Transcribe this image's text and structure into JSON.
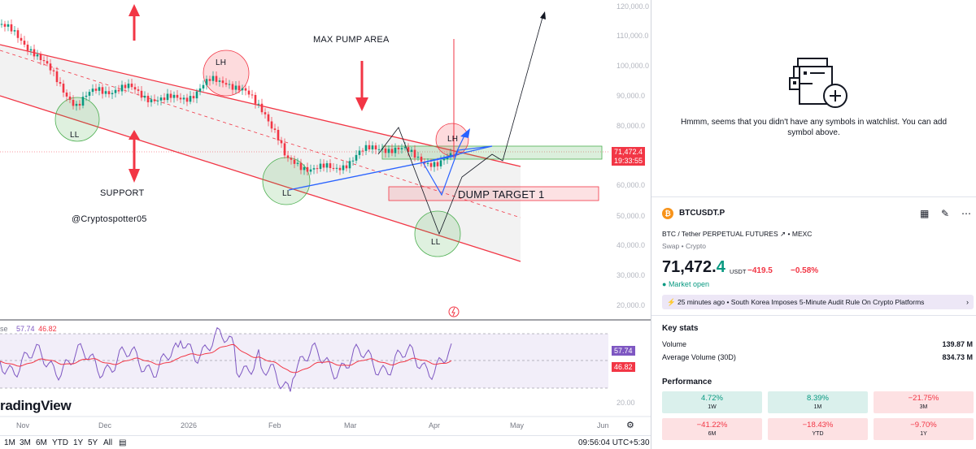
{
  "chart": {
    "price_axis": [
      "120,000.0",
      "110,000.0",
      "100,000.0",
      "90,000.0",
      "80,000.0",
      "70,000.0",
      "60,000.0",
      "50,000.0",
      "40,000.0",
      "30,000.0",
      "20,000.0"
    ],
    "time_axis": [
      "Nov",
      "Dec",
      "2026",
      "Feb",
      "Mar",
      "Apr",
      "May",
      "Jun"
    ],
    "current_price_tag": "71,472.4",
    "countdown_tag": "19:33:55",
    "annotations": {
      "max_pump": "MAX PUMP AREA",
      "support": "SUPPORT",
      "dump_target": "DUMP TARGET 1",
      "handle": "@Cryptospotter05",
      "lh1": "LH",
      "lh2": "LH",
      "ll1": "LL",
      "ll2": "LL",
      "ll3": "LL"
    },
    "rsi": {
      "legend_prefix": "se",
      "value1": "57.74",
      "value2": "46.82",
      "axis_label": "20.00"
    },
    "logo_text": "radingView",
    "range_buttons": [
      "1M",
      "3M",
      "6M",
      "YTD",
      "1Y",
      "5Y",
      "All"
    ],
    "clock": "09:56:04 UTC+5:30"
  },
  "watchlist": {
    "empty_message": "Hmmm, seems that you didn't have any symbols in watchlist. You can add symbol above."
  },
  "symbol": {
    "ticker": "BTCUSDT.P",
    "description": "BTC / Tether PERPETUAL FUTURES",
    "exchange": "MEXC",
    "type": "Swap • Crypto",
    "price_main": "71,472.",
    "price_last_digit": "4",
    "currency": "USDT",
    "change": "−419.5",
    "change_pct": "−0.58%",
    "market_status": "Market open",
    "news_time": "25 minutes ago",
    "news_headline": "South Korea Imposes 5-Minute Audit Rule On Crypto Platforms"
  },
  "key_stats": {
    "title": "Key stats",
    "rows": [
      {
        "label": "Volume",
        "value": "139.87 M"
      },
      {
        "label": "Average Volume (30D)",
        "value": "834.73 M"
      }
    ]
  },
  "performance": {
    "title": "Performance",
    "cells": [
      {
        "value": "4.72%",
        "label": "1W",
        "positive": true
      },
      {
        "value": "8.39%",
        "label": "1M",
        "positive": true
      },
      {
        "value": "−21.75%",
        "label": "3M",
        "positive": false
      },
      {
        "value": "−41.22%",
        "label": "6M",
        "positive": false
      },
      {
        "value": "−18.43%",
        "label": "YTD",
        "positive": false
      },
      {
        "value": "−9.70%",
        "label": "1Y",
        "positive": false
      }
    ]
  },
  "colors": {
    "up": "#089981",
    "down": "#f23645",
    "accent": "#2962ff",
    "rsi_line": "#7e57c2"
  }
}
